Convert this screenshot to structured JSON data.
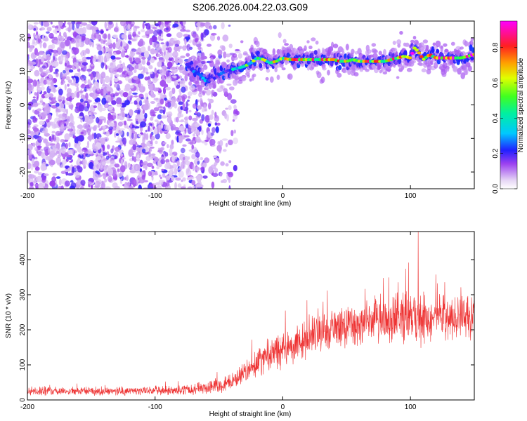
{
  "title": "S206.2026.004.22.03.G09",
  "chart_data": [
    {
      "type": "heatmap",
      "xlabel": "Height of straight line (km)",
      "ylabel": "Frequency (Hz)",
      "xlim": [
        -200,
        150
      ],
      "ylim": [
        -25,
        25
      ],
      "x_ticks": [
        -200,
        -100,
        0,
        100
      ],
      "y_ticks": [
        -20,
        -10,
        0,
        10,
        20
      ],
      "colorbar": {
        "label": "Normalized spectral amplitude",
        "range": [
          0,
          0.95
        ],
        "ticks": [
          0,
          0.2,
          0.4,
          0.6,
          0.8
        ],
        "colormap": "white-purple-blue-cyan-green-yellow-red-magenta"
      },
      "noise_region_x": [
        -200,
        -40
      ],
      "ridge": {
        "x": [
          -75,
          -70,
          -65,
          -60,
          -55,
          -50,
          -45,
          -40,
          -35,
          -30,
          -25,
          -20,
          -15,
          -10,
          -5,
          0,
          5,
          10,
          15,
          20,
          25,
          30,
          35,
          40,
          45,
          50,
          55,
          60,
          65,
          70,
          75,
          80,
          85,
          90,
          95,
          100,
          103,
          106,
          110,
          115,
          120,
          125,
          130,
          135,
          140,
          145,
          150
        ],
        "frequency": [
          12,
          10,
          9,
          7,
          7.5,
          9,
          10,
          10.5,
          11,
          11.5,
          12.5,
          14,
          13.5,
          12.5,
          13,
          14,
          13.5,
          13.5,
          13.5,
          13.5,
          13.5,
          13.5,
          13.5,
          13.5,
          13,
          13,
          13.5,
          13,
          13,
          13,
          13,
          13,
          13.5,
          14,
          14.5,
          14,
          17,
          16,
          13.5,
          15,
          14,
          14,
          14,
          14,
          14,
          14.5,
          15
        ],
        "amplitude": [
          0.25,
          0.3,
          0.35,
          0.3,
          0.2,
          0.25,
          0.3,
          0.4,
          0.45,
          0.5,
          0.55,
          0.6,
          0.6,
          0.65,
          0.7,
          0.75,
          0.75,
          0.8,
          0.8,
          0.8,
          0.8,
          0.8,
          0.8,
          0.8,
          0.8,
          0.8,
          0.8,
          0.8,
          0.8,
          0.8,
          0.8,
          0.8,
          0.8,
          0.85,
          0.85,
          0.85,
          0.9,
          0.9,
          0.85,
          0.9,
          0.9,
          0.9,
          0.9,
          0.9,
          0.9,
          0.9,
          0.9
        ]
      }
    },
    {
      "type": "line",
      "xlabel": "Height of straight line (km)",
      "ylabel": "SNR (10 * v/v)",
      "xlim": [
        -200,
        150
      ],
      "ylim": [
        0,
        480
      ],
      "x_ticks": [
        -200,
        -100,
        0,
        100
      ],
      "y_ticks": [
        0,
        100,
        200,
        300,
        400
      ],
      "color": "#ee3333",
      "trend": {
        "x": [
          -200,
          -150,
          -100,
          -80,
          -60,
          -40,
          -30,
          -20,
          -10,
          0,
          10,
          20,
          30,
          40,
          50,
          60,
          70,
          80,
          90,
          100,
          110,
          120,
          130,
          140,
          150
        ],
        "snr": [
          25,
          25,
          26,
          28,
          35,
          50,
          80,
          110,
          130,
          140,
          160,
          180,
          195,
          205,
          210,
          215,
          220,
          225,
          225,
          228,
          230,
          232,
          235,
          238,
          240
        ],
        "spread": [
          12,
          12,
          12,
          14,
          18,
          25,
          35,
          45,
          50,
          55,
          55,
          55,
          55,
          55,
          60,
          60,
          65,
          70,
          75,
          75,
          70,
          65,
          60,
          60,
          60
        ]
      },
      "peak": {
        "x": 106,
        "snr": 480
      }
    }
  ]
}
